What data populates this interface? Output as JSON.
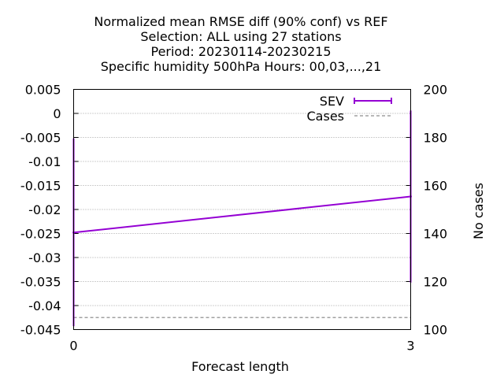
{
  "chart_data": {
    "type": "line",
    "title_lines": [
      "Normalized mean RMSE diff (90% conf) vs REF",
      "Selection: ALL using    27 stations",
      "Period: 20230114-20230215",
      "Specific humidity 500hPa   Hours:  00,03,...,21"
    ],
    "xlabel": "Forecast length",
    "ylabel": "",
    "y2label": "No cases",
    "x_ticks": [
      "0",
      "3"
    ],
    "xlim": [
      0,
      3
    ],
    "ylim": [
      -0.045,
      0.005
    ],
    "y_ticks": [
      "0.005",
      "0",
      "-0.005",
      "-0.01",
      "-0.015",
      "-0.02",
      "-0.025",
      "-0.03",
      "-0.035",
      "-0.04",
      "-0.045"
    ],
    "y2lim": [
      100,
      200
    ],
    "y2_ticks": [
      "200",
      "180",
      "160",
      "140",
      "120",
      "100"
    ],
    "grid": true,
    "legend_position": "top-right",
    "series": [
      {
        "name": "SEV",
        "color": "#9400d3",
        "axis": "y",
        "x": [
          0,
          3
        ],
        "y": [
          -0.0248,
          -0.0173
        ],
        "err_low": [
          -0.0443,
          -0.0352
        ],
        "err_high": [
          -0.0052,
          0.0006
        ]
      },
      {
        "name": "Cases",
        "color": "#a0a0a0",
        "axis": "y2",
        "style": "dashed",
        "x": [
          0,
          3
        ],
        "y": [
          105,
          105
        ]
      }
    ]
  }
}
